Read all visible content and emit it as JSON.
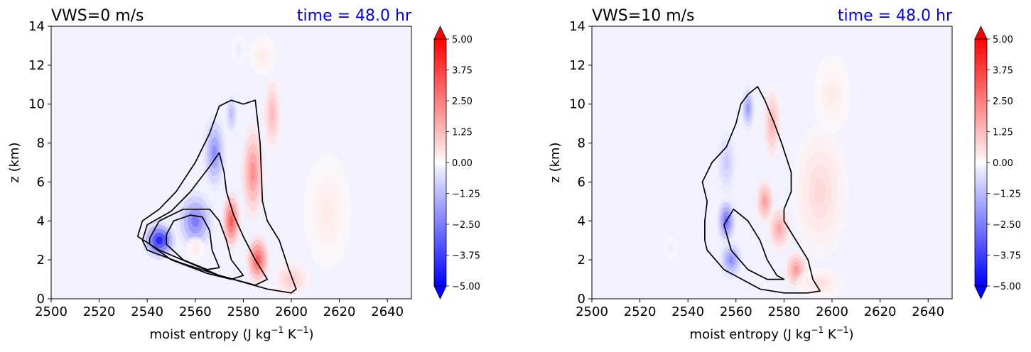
{
  "chart_data": [
    {
      "type": "heatmap",
      "title_left": "VWS=0 m/s",
      "title_right": "time = 48.0 hr",
      "xlabel_main": "moist entropy (J kg",
      "xlabel_sup1": "−1",
      "xlabel_mid": " K",
      "xlabel_sup2": "−1",
      "xlabel_end": ")",
      "ylabel": "z (km)",
      "xlim": [
        2500,
        2650
      ],
      "ylim": [
        0,
        14
      ],
      "xticks": [
        "2500",
        "2520",
        "2540",
        "2560",
        "2580",
        "2600",
        "2620",
        "2640"
      ],
      "yticks": [
        "0",
        "2",
        "4",
        "6",
        "8",
        "10",
        "12",
        "14"
      ],
      "colorbar": {
        "range": [
          -5.0,
          5.0
        ],
        "ticks": [
          "5.00",
          "3.75",
          "2.50",
          "1.25",
          "0.00",
          "−1.25",
          "−2.50",
          "−3.75",
          "−5.00"
        ],
        "colormap": "bwr",
        "extend": "both"
      },
      "blobs": [
        {
          "x": 2545,
          "y": 3.0,
          "sx": 7,
          "sy": 1.0,
          "v": -5.0
        },
        {
          "x": 2560,
          "y": 4.0,
          "sx": 8,
          "sy": 1.6,
          "v": -3.0
        },
        {
          "x": 2568,
          "y": 7.5,
          "sx": 5,
          "sy": 2.0,
          "v": -2.6
        },
        {
          "x": 2575,
          "y": 9.5,
          "sx": 3,
          "sy": 1.2,
          "v": -1.5
        },
        {
          "x": 2575,
          "y": 4.0,
          "sx": 4,
          "sy": 1.5,
          "v": 3.8
        },
        {
          "x": 2586,
          "y": 2.0,
          "sx": 5,
          "sy": 1.3,
          "v": 3.8
        },
        {
          "x": 2584,
          "y": 6.5,
          "sx": 5,
          "sy": 2.5,
          "v": 2.6
        },
        {
          "x": 2592,
          "y": 9.5,
          "sx": 4,
          "sy": 2.0,
          "v": 1.6
        },
        {
          "x": 2600,
          "y": 1.0,
          "sx": 8,
          "sy": 1.0,
          "v": 1.2
        },
        {
          "x": 2560,
          "y": 2.6,
          "sx": 4,
          "sy": 0.6,
          "v": 0.5
        },
        {
          "x": 2615,
          "y": 4.5,
          "sx": 10,
          "sy": 3.0,
          "v": 0.5
        },
        {
          "x": 2588,
          "y": 12.5,
          "sx": 6,
          "sy": 1.0,
          "v": 0.5
        },
        {
          "x": 2578,
          "y": 12.8,
          "sx": 3,
          "sy": 0.8,
          "v": -0.5
        }
      ],
      "contours": [
        [
          [
            2536,
            3.2
          ],
          [
            2538,
            4.0
          ],
          [
            2545,
            4.6
          ],
          [
            2552,
            5.5
          ],
          [
            2560,
            7.0
          ],
          [
            2566,
            8.5
          ],
          [
            2570,
            9.9
          ],
          [
            2575,
            10.2
          ],
          [
            2580,
            10.0
          ],
          [
            2585,
            10.2
          ],
          [
            2587,
            8.0
          ],
          [
            2588,
            5.0
          ],
          [
            2590,
            4.0
          ],
          [
            2595,
            3.0
          ],
          [
            2599,
            1.5
          ],
          [
            2602,
            0.5
          ],
          [
            2600,
            0.3
          ],
          [
            2590,
            0.5
          ],
          [
            2570,
            1.2
          ],
          [
            2545,
            2.5
          ],
          [
            2536,
            3.2
          ]
        ],
        [
          [
            2538,
            3.0
          ],
          [
            2540,
            3.8
          ],
          [
            2550,
            4.5
          ],
          [
            2558,
            5.5
          ],
          [
            2566,
            6.8
          ],
          [
            2570,
            7.5
          ],
          [
            2572,
            6.5
          ],
          [
            2573,
            5.5
          ],
          [
            2576,
            4.3
          ],
          [
            2580,
            3.2
          ],
          [
            2585,
            2.0
          ],
          [
            2590,
            1.0
          ],
          [
            2585,
            0.7
          ],
          [
            2570,
            1.2
          ],
          [
            2555,
            1.8
          ],
          [
            2540,
            2.5
          ],
          [
            2538,
            3.0
          ]
        ],
        [
          [
            2541,
            3.1
          ],
          [
            2545,
            4.0
          ],
          [
            2555,
            4.6
          ],
          [
            2566,
            4.6
          ],
          [
            2570,
            4.0
          ],
          [
            2573,
            3.0
          ],
          [
            2575,
            2.0
          ],
          [
            2580,
            1.2
          ],
          [
            2575,
            1.0
          ],
          [
            2565,
            1.3
          ],
          [
            2550,
            2.0
          ],
          [
            2541,
            2.8
          ],
          [
            2541,
            3.1
          ]
        ],
        [
          [
            2548,
            3.3
          ],
          [
            2551,
            4.0
          ],
          [
            2558,
            4.3
          ],
          [
            2563,
            4.2
          ],
          [
            2566,
            3.5
          ],
          [
            2567,
            2.5
          ],
          [
            2570,
            1.6
          ],
          [
            2565,
            1.5
          ],
          [
            2555,
            2.0
          ],
          [
            2548,
            2.8
          ],
          [
            2548,
            3.3
          ]
        ]
      ]
    },
    {
      "type": "heatmap",
      "title_left": "VWS=10 m/s",
      "title_right": "time = 48.0 hr",
      "xlabel_main": "moist entropy (J kg",
      "xlabel_sup1": "−1",
      "xlabel_mid": " K",
      "xlabel_sup2": "−1",
      "xlabel_end": ")",
      "ylabel": "z (km)",
      "xlim": [
        2500,
        2650
      ],
      "ylim": [
        0,
        14
      ],
      "xticks": [
        "2500",
        "2520",
        "2540",
        "2560",
        "2580",
        "2600",
        "2620",
        "2640"
      ],
      "yticks": [
        "0",
        "2",
        "4",
        "6",
        "8",
        "10",
        "12",
        "14"
      ],
      "colorbar": {
        "range": [
          -5.0,
          5.0
        ],
        "ticks": [
          "5.00",
          "3.75",
          "2.50",
          "1.25",
          "0.00",
          "−1.25",
          "−2.50",
          "−3.75",
          "−5.00"
        ],
        "colormap": "bwr",
        "extend": "both"
      },
      "blobs": [
        {
          "x": 2556,
          "y": 4.0,
          "sx": 4,
          "sy": 1.2,
          "v": -3.4
        },
        {
          "x": 2558,
          "y": 2.0,
          "sx": 5,
          "sy": 1.0,
          "v": -2.6
        },
        {
          "x": 2565,
          "y": 9.8,
          "sx": 3,
          "sy": 1.2,
          "v": -2.3
        },
        {
          "x": 2556,
          "y": 7.0,
          "sx": 5,
          "sy": 2.0,
          "v": -1.2
        },
        {
          "x": 2572,
          "y": 5.0,
          "sx": 4,
          "sy": 1.2,
          "v": 2.2
        },
        {
          "x": 2578,
          "y": 3.6,
          "sx": 5,
          "sy": 1.2,
          "v": 2.0
        },
        {
          "x": 2585,
          "y": 1.5,
          "sx": 5,
          "sy": 1.0,
          "v": 2.3
        },
        {
          "x": 2575,
          "y": 9.0,
          "sx": 4,
          "sy": 2.0,
          "v": 1.7
        },
        {
          "x": 2595,
          "y": 5.5,
          "sx": 12,
          "sy": 3.5,
          "v": 0.9
        },
        {
          "x": 2595,
          "y": 0.8,
          "sx": 10,
          "sy": 0.8,
          "v": 0.7
        },
        {
          "x": 2600,
          "y": 10.5,
          "sx": 8,
          "sy": 2.0,
          "v": 0.5
        },
        {
          "x": 2533,
          "y": 2.6,
          "sx": 3,
          "sy": 0.6,
          "v": -0.4
        }
      ],
      "contours": [
        [
          [
            2547,
            4.0
          ],
          [
            2548,
            5.0
          ],
          [
            2546,
            6.0
          ],
          [
            2550,
            7.0
          ],
          [
            2556,
            7.8
          ],
          [
            2560,
            9.0
          ],
          [
            2562,
            10.0
          ],
          [
            2565,
            10.5
          ],
          [
            2569,
            10.9
          ],
          [
            2572,
            10.2
          ],
          [
            2576,
            9.0
          ],
          [
            2579,
            8.0
          ],
          [
            2583,
            6.5
          ],
          [
            2583,
            5.5
          ],
          [
            2580,
            4.6
          ],
          [
            2580,
            4.0
          ],
          [
            2585,
            3.0
          ],
          [
            2590,
            2.0
          ],
          [
            2592,
            1.0
          ],
          [
            2595,
            0.4
          ],
          [
            2590,
            0.3
          ],
          [
            2580,
            0.3
          ],
          [
            2570,
            0.5
          ],
          [
            2555,
            1.5
          ],
          [
            2548,
            2.5
          ],
          [
            2547,
            3.0
          ],
          [
            2547,
            4.0
          ]
        ],
        [
          [
            2555,
            3.8
          ],
          [
            2559,
            4.6
          ],
          [
            2565,
            4.0
          ],
          [
            2570,
            3.0
          ],
          [
            2573,
            2.0
          ],
          [
            2577,
            1.2
          ],
          [
            2580,
            1.0
          ],
          [
            2573,
            1.0
          ],
          [
            2565,
            1.5
          ],
          [
            2558,
            2.5
          ],
          [
            2555,
            3.8
          ]
        ]
      ]
    }
  ]
}
